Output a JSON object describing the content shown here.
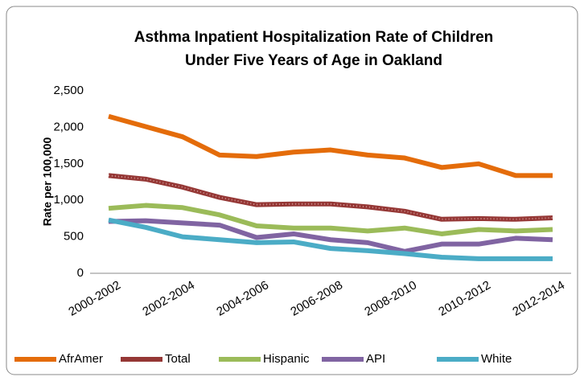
{
  "chart_data": {
    "type": "line",
    "title": [
      "Asthma Inpatient Hospitalization Rate of Children",
      "Under Five Years of Age in Oakland"
    ],
    "y_label": "Rate per 100,000",
    "categories": [
      "2000-2002",
      null,
      "2002-2004",
      null,
      "2004-2006",
      null,
      "2006-2008",
      null,
      "2008-2010",
      null,
      "2010-2012",
      null,
      "2012-2014"
    ],
    "series": [
      {
        "name": "AfrAmer",
        "color": "#e46c0a",
        "values": [
          2150,
          2010,
          1870,
          1620,
          1600,
          1660,
          1690,
          1620,
          1580,
          1450,
          1500,
          1340,
          1340
        ]
      },
      {
        "name": "Total",
        "color": "#953735",
        "values": [
          1340,
          1290,
          1180,
          1040,
          940,
          950,
          950,
          910,
          850,
          740,
          750,
          740,
          760
        ]
      },
      {
        "name": "Hispanic",
        "color": "#9bbb59",
        "values": [
          890,
          930,
          900,
          800,
          650,
          620,
          620,
          580,
          620,
          540,
          600,
          580,
          600
        ]
      },
      {
        "name": "API",
        "color": "#8064a2",
        "values": [
          710,
          720,
          690,
          660,
          490,
          540,
          460,
          420,
          300,
          400,
          400,
          480,
          460
        ]
      },
      {
        "name": "White",
        "color": "#4bacc6",
        "values": [
          730,
          630,
          500,
          460,
          420,
          430,
          340,
          310,
          270,
          220,
          200,
          200,
          200
        ]
      }
    ],
    "ylim": [
      0,
      2500
    ],
    "yticks": [
      0,
      500,
      {
        "value": 1000,
        "label": "1,000"
      },
      {
        "value": 1500,
        "label": "1,500"
      },
      {
        "value": 2000,
        "label": "2,000"
      },
      {
        "value": 2500,
        "label": "2,500"
      }
    ],
    "legend": "bottom"
  }
}
